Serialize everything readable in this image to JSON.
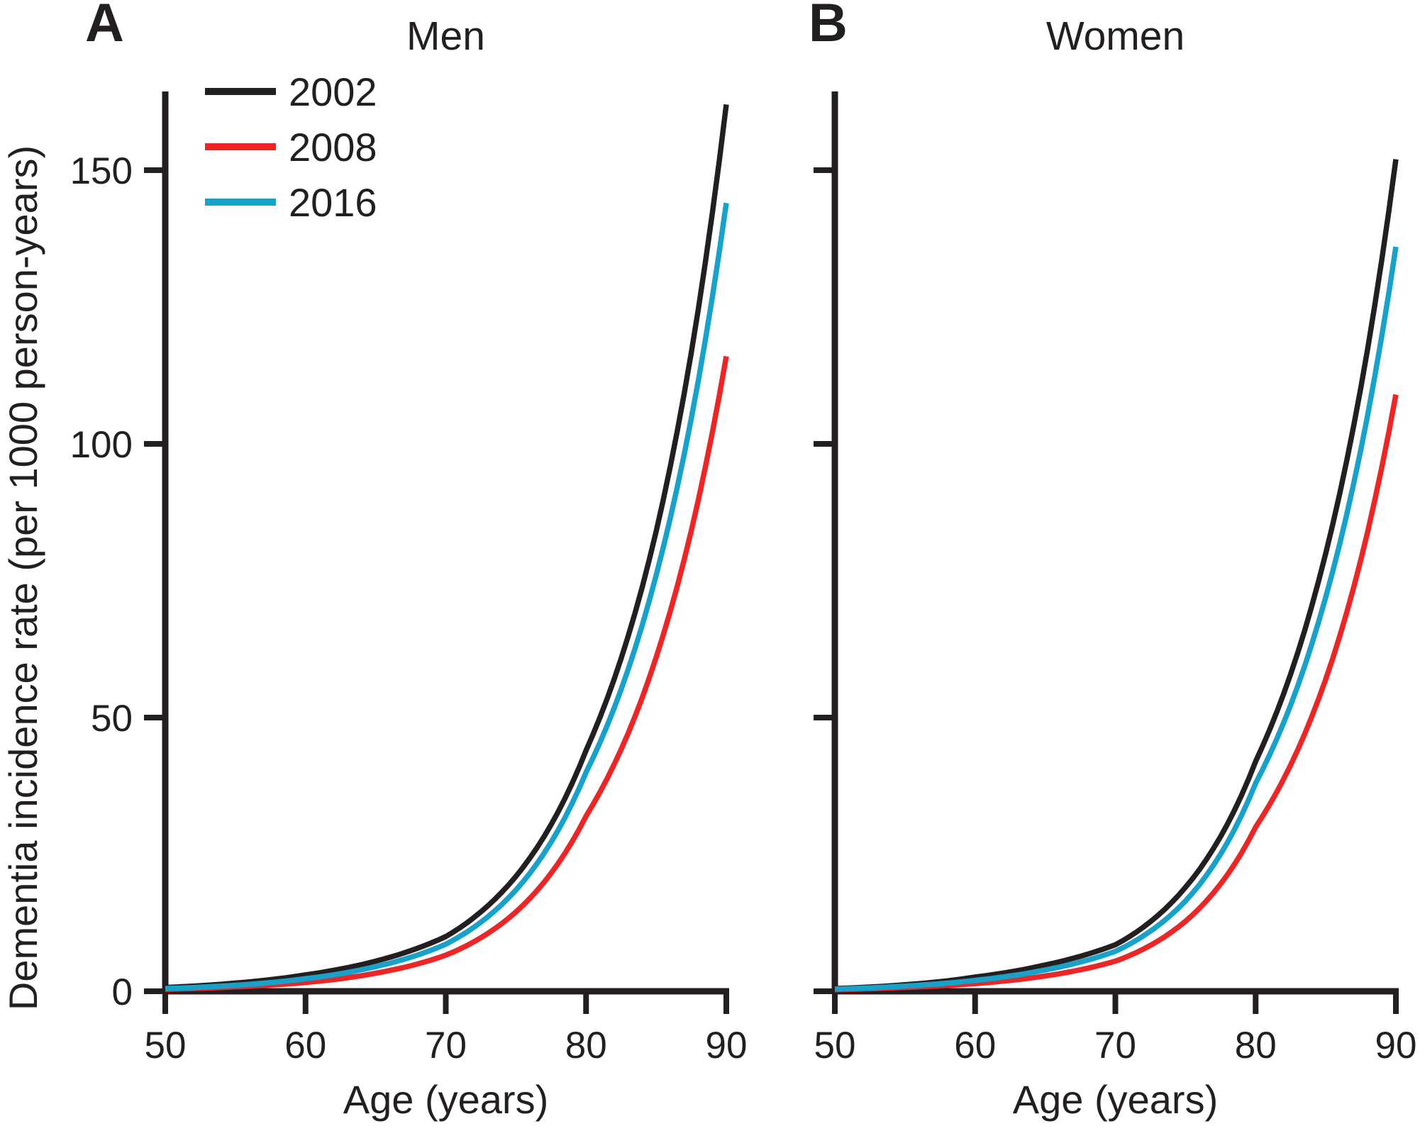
{
  "figure": {
    "y_axis_label": "Dementia incidence rate (per 1000 person-years)",
    "x_axis_label": "Age (years)",
    "axis_color": "#231f20",
    "background_color": "#ffffff",
    "legend": {
      "position": "top-left",
      "entries": [
        {
          "label": "2002",
          "color": "#231f20"
        },
        {
          "label": "2008",
          "color": "#ee2524"
        },
        {
          "label": "2016",
          "color": "#16a2cb"
        }
      ]
    }
  },
  "chart_data": [
    {
      "type": "line",
      "panel_label": "A",
      "title": "Men",
      "xlabel": "Age (years)",
      "ylabel": "Dementia incidence rate (per 1000 person-years)",
      "xlim": [
        50,
        90
      ],
      "ylim": [
        0,
        165
      ],
      "xticks": [
        50,
        60,
        70,
        80,
        90
      ],
      "yticks": [
        0,
        50,
        100,
        150
      ],
      "y_tick_labels_visible": true,
      "grid": false,
      "legend_visible": true,
      "x": [
        50,
        55,
        60,
        65,
        70,
        75,
        80,
        85,
        90
      ],
      "series": [
        {
          "name": "2002",
          "color": "#231f20",
          "values": [
            0.7,
            1.5,
            3.0,
            5.5,
            10.0,
            21.0,
            44.0,
            84.0,
            162.0
          ]
        },
        {
          "name": "2008",
          "color": "#ee2524",
          "values": [
            0.35,
            0.8,
            1.6,
            3.3,
            6.6,
            14.5,
            32.0,
            61.0,
            116.0
          ]
        },
        {
          "name": "2016",
          "color": "#16a2cb",
          "values": [
            0.5,
            1.1,
            2.3,
            4.5,
            8.6,
            18.5,
            40.0,
            76.0,
            144.0
          ]
        }
      ]
    },
    {
      "type": "line",
      "panel_label": "B",
      "title": "Women",
      "xlabel": "Age (years)",
      "ylabel": "",
      "xlim": [
        50,
        90
      ],
      "ylim": [
        0,
        165
      ],
      "xticks": [
        50,
        60,
        70,
        80,
        90
      ],
      "yticks": [
        0,
        50,
        100,
        150
      ],
      "y_tick_labels_visible": false,
      "grid": false,
      "legend_visible": false,
      "x": [
        50,
        55,
        60,
        65,
        70,
        75,
        80,
        85,
        90
      ],
      "series": [
        {
          "name": "2002",
          "color": "#231f20",
          "values": [
            0.5,
            1.2,
            2.6,
            4.8,
            8.5,
            19.0,
            42.0,
            80.0,
            152.0
          ]
        },
        {
          "name": "2008",
          "color": "#ee2524",
          "values": [
            0.3,
            0.7,
            1.4,
            2.8,
            5.5,
            12.8,
            30.0,
            57.0,
            109.0
          ]
        },
        {
          "name": "2016",
          "color": "#16a2cb",
          "values": [
            0.4,
            0.95,
            2.0,
            3.9,
            7.3,
            16.5,
            38.0,
            72.0,
            136.0
          ]
        }
      ]
    }
  ]
}
